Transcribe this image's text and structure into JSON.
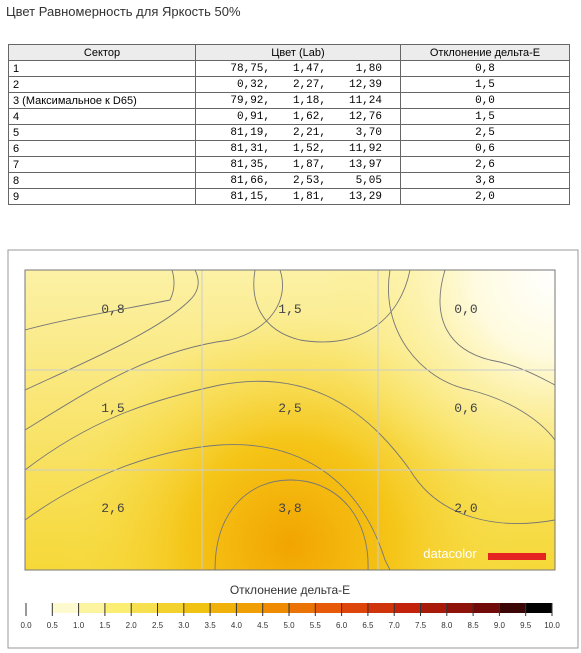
{
  "title": "Цвет Равномерность для Яркость 50%",
  "table": {
    "headers": [
      "Сектор",
      "Цвет (Lab)",
      "Отклонение дельта-E"
    ],
    "rows": [
      [
        "1",
        [
          "78,75,",
          "1,47,",
          "1,80"
        ],
        "0,8"
      ],
      [
        "2",
        [
          "0,32,",
          "2,27,",
          "12,39"
        ],
        "1,5"
      ],
      [
        "3 (Максимальное к D65)",
        [
          "79,92,",
          "1,18,",
          "11,24"
        ],
        "0,0"
      ],
      [
        "4",
        [
          "0,91,",
          "1,62,",
          "12,76"
        ],
        "1,5"
      ],
      [
        "5",
        [
          "81,19,",
          "2,21,",
          "3,70"
        ],
        "2,5"
      ],
      [
        "6",
        [
          "81,31,",
          "1,52,",
          "11,92"
        ],
        "0,6"
      ],
      [
        "7",
        [
          "81,35,",
          "1,87,",
          "13,97"
        ],
        "2,6"
      ],
      [
        "8",
        [
          "81,66,",
          "2,53,",
          "5,05"
        ],
        "3,8"
      ],
      [
        "9",
        [
          "81,15,",
          "1,81,",
          "13,29"
        ],
        "2,0"
      ]
    ]
  },
  "map": {
    "cells": [
      "0,8",
      "1,5",
      "0,0",
      "1,5",
      "2,5",
      "0,6",
      "2,6",
      "3,8",
      "2,0"
    ],
    "logo": "datacolor",
    "legend_title": "Отклонение дельта-E",
    "legend_labels": [
      "0.0",
      "0.5",
      "1.0",
      "1.5",
      "2.0",
      "2.5",
      "3.0",
      "3.5",
      "4.0",
      "4.5",
      "5.0",
      "5.5",
      "6.0",
      "6.5",
      "7.0",
      "7.5",
      "8.0",
      "8.5",
      "9.0",
      "9.5",
      "10.0"
    ]
  }
}
